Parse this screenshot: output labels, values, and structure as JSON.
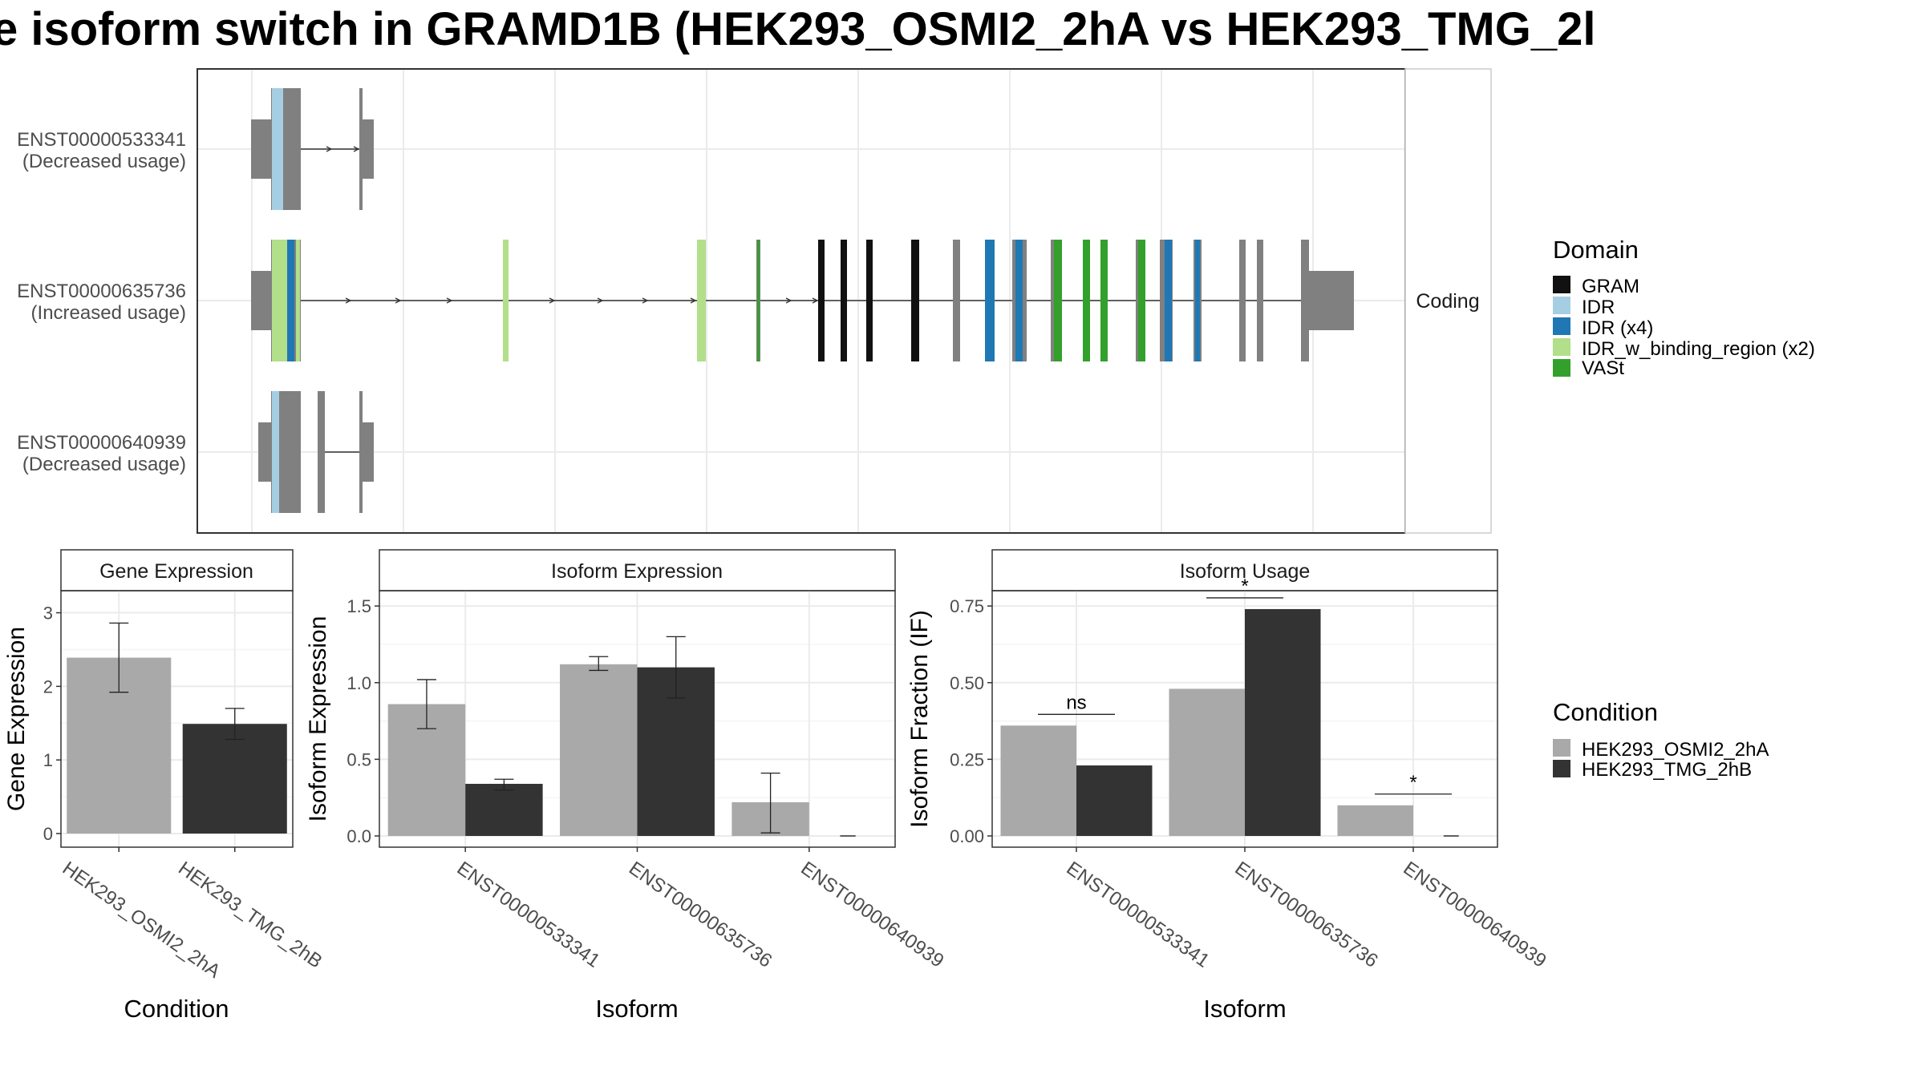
{
  "title": "e isoform switch in GRAMD1B (HEK293_OSMI2_2hA vs HEK293_TMG_2l",
  "colors": {
    "condition_a": "#a9a9a9",
    "condition_b": "#333333",
    "exon": "#808080",
    "grid": "#ebebeb",
    "panel_border": "#333333",
    "strip_bg": "#ffffff"
  },
  "structure": {
    "facet_label": "Coding",
    "transcripts": [
      {
        "id": "ENST00000533341",
        "usage": "(Decreased usage)"
      },
      {
        "id": "ENST00000635736",
        "usage": "(Increased usage)"
      },
      {
        "id": "ENST00000640939",
        "usage": "(Decreased usage)"
      }
    ],
    "domain_legend": {
      "title": "Domain",
      "items": [
        {
          "label": "GRAM",
          "color": "#111111"
        },
        {
          "label": "IDR",
          "color": "#a6cee3"
        },
        {
          "label": "IDR (x4)",
          "color": "#1f78b4"
        },
        {
          "label": "IDR_w_binding_region (x2)",
          "color": "#b2df8a"
        },
        {
          "label": "VASt",
          "color": "#33a02c"
        }
      ]
    }
  },
  "condition_legend": {
    "title": "Condition",
    "items": [
      {
        "label": "HEK293_OSMI2_2hA",
        "color": "#a9a9a9"
      },
      {
        "label": "HEK293_TMG_2hB",
        "color": "#333333"
      }
    ]
  },
  "chart_data": [
    {
      "type": "bar",
      "title": "Gene Expression",
      "xlabel": "Condition",
      "ylabel": "Gene Expression",
      "ylim": [
        0,
        3.3
      ],
      "yticks": [
        "0",
        "1",
        "2",
        "3"
      ],
      "categories": [
        "HEK293_OSMI2_2hA",
        "HEK293_TMG_2hB"
      ],
      "values": [
        2.39,
        1.49
      ],
      "error_low": [
        1.92,
        1.28
      ],
      "error_high": [
        2.86,
        1.7
      ]
    },
    {
      "type": "bar",
      "title": "Isoform Expression",
      "xlabel": "Isoform",
      "ylabel": "Isoform Expression",
      "ylim": [
        0,
        1.6
      ],
      "yticks": [
        "0.0",
        "0.5",
        "1.0",
        "1.5"
      ],
      "categories": [
        "ENST00000533341",
        "ENST00000635736",
        "ENST00000640939"
      ],
      "series": [
        {
          "name": "HEK293_OSMI2_2hA",
          "values": [
            0.86,
            1.12,
            0.22
          ],
          "error_low": [
            0.7,
            1.08,
            0.02
          ],
          "error_high": [
            1.02,
            1.17,
            0.41
          ]
        },
        {
          "name": "HEK293_TMG_2hB",
          "values": [
            0.34,
            1.1,
            0.0
          ],
          "error_low": [
            0.3,
            0.9,
            0.0
          ],
          "error_high": [
            0.37,
            1.3,
            0.0
          ]
        }
      ]
    },
    {
      "type": "bar",
      "title": "Isoform Usage",
      "xlabel": "Isoform",
      "ylabel": "Isoform Fraction (IF)",
      "ylim": [
        0,
        0.8
      ],
      "yticks": [
        "0.00",
        "0.25",
        "0.50",
        "0.75"
      ],
      "categories": [
        "ENST00000533341",
        "ENST00000635736",
        "ENST00000640939"
      ],
      "series": [
        {
          "name": "HEK293_OSMI2_2hA",
          "values": [
            0.36,
            0.48,
            0.1
          ]
        },
        {
          "name": "HEK293_TMG_2hB",
          "values": [
            0.23,
            0.74,
            0.0
          ]
        }
      ],
      "significance": [
        "ns",
        "*",
        "*"
      ]
    }
  ]
}
